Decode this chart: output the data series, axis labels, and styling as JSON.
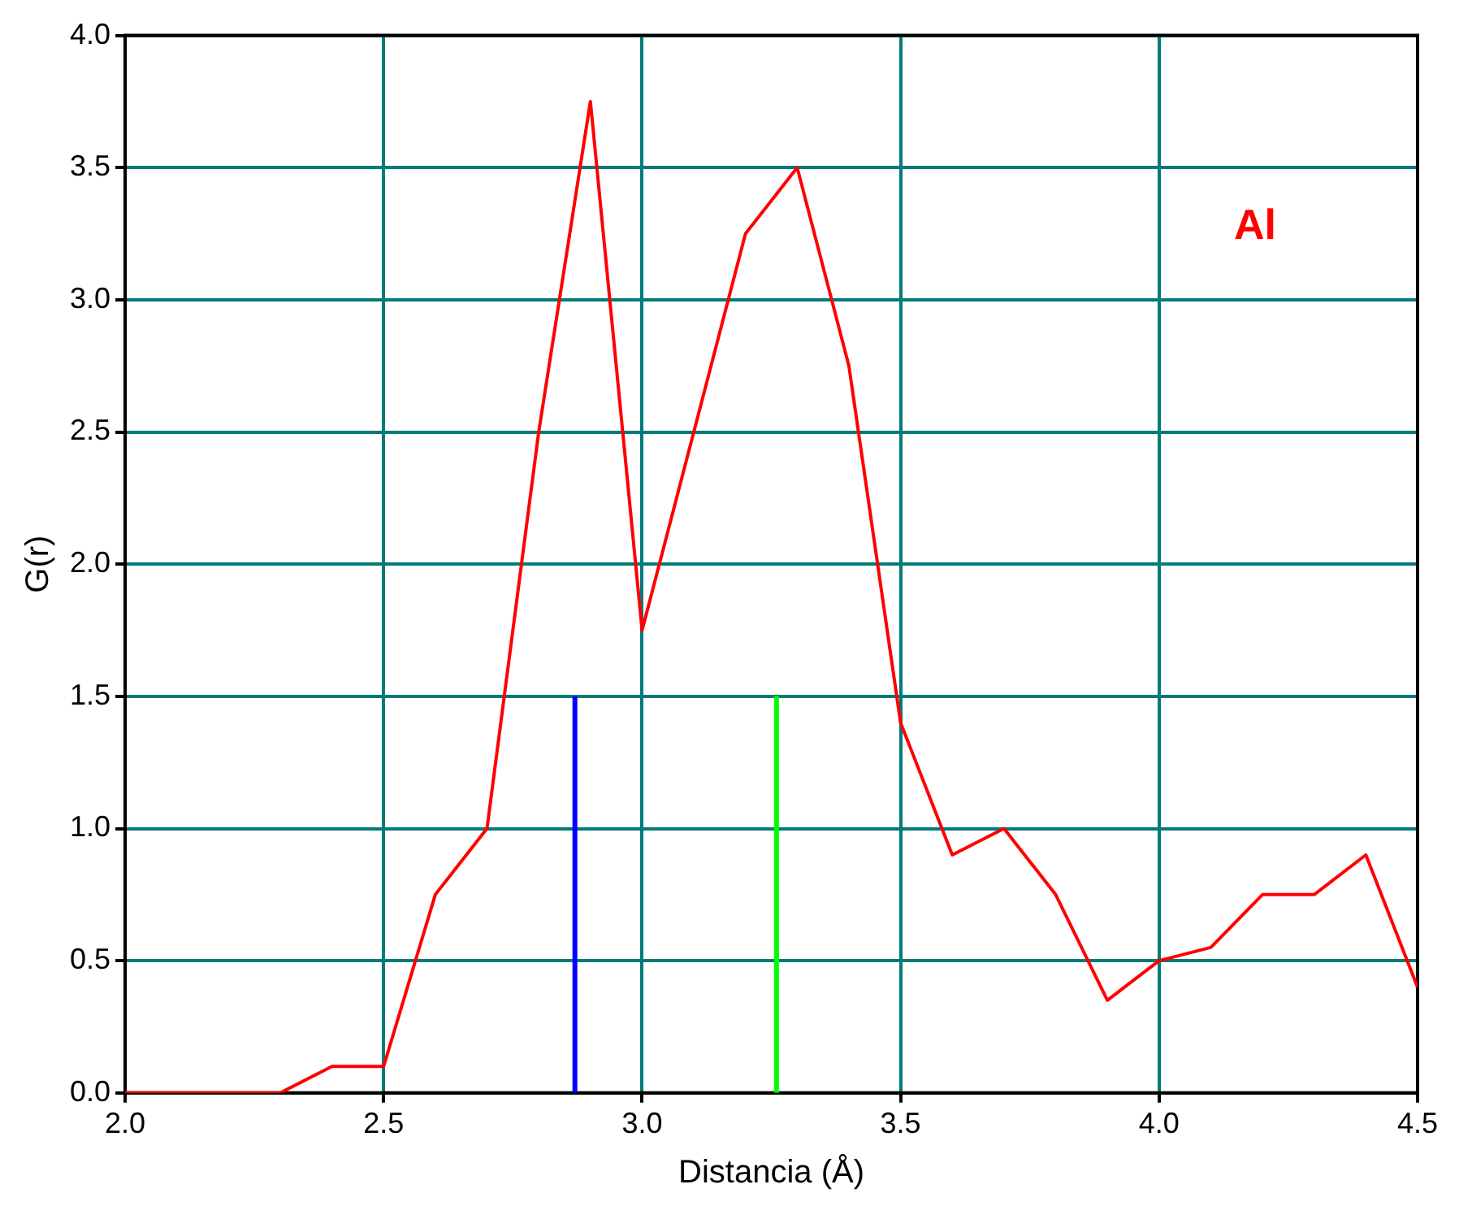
{
  "chart_data": {
    "type": "line",
    "xlabel": "Distancia (Å)",
    "ylabel": "G(r)",
    "xlim": [
      2,
      4.5
    ],
    "ylim": [
      0,
      4
    ],
    "xticks": [
      {
        "value": 2,
        "label": "2.0"
      },
      2.5,
      {
        "value": 3,
        "label": "3.0"
      },
      3.5,
      {
        "value": 4,
        "label": "4.0"
      },
      4.5
    ],
    "yticks": [
      {
        "value": 0,
        "label": "0.0"
      },
      0.5,
      {
        "value": 1,
        "label": "1.0"
      },
      1.5,
      {
        "value": 2,
        "label": "2.0"
      },
      2.5,
      {
        "value": 3,
        "label": "3.0"
      },
      3.5,
      {
        "value": 4,
        "label": "4.0"
      }
    ],
    "grid": true,
    "legend": false,
    "marker": "none",
    "line_style": "solid",
    "series": [
      {
        "name": "Al",
        "color": "#ff0000",
        "x": [
          2.0,
          2.1,
          2.2,
          2.3,
          2.4,
          2.5,
          2.6,
          2.7,
          2.8,
          2.9,
          3.0,
          3.1,
          3.2,
          3.3,
          3.4,
          3.5,
          3.6,
          3.7,
          3.8,
          3.9,
          4.0,
          4.1,
          4.2,
          4.3,
          4.4,
          4.5
        ],
        "values": [
          0,
          0,
          0,
          0,
          0.1,
          0.1,
          0.75,
          1.0,
          2.5,
          3.75,
          1.75,
          2.5,
          3.25,
          3.5,
          2.75,
          1.4,
          0.9,
          1.0,
          0.75,
          0.35,
          0.5,
          0.55,
          0.75,
          0.75,
          0.9,
          0.4
        ]
      },
      {
        "color": "#0000ff",
        "x": [
          2.87,
          2.87
        ],
        "values": [
          0,
          1.5
        ]
      },
      {
        "color": "#00ff00",
        "x": [
          3.26,
          3.26
        ],
        "values": [
          0,
          1.5
        ]
      }
    ]
  }
}
